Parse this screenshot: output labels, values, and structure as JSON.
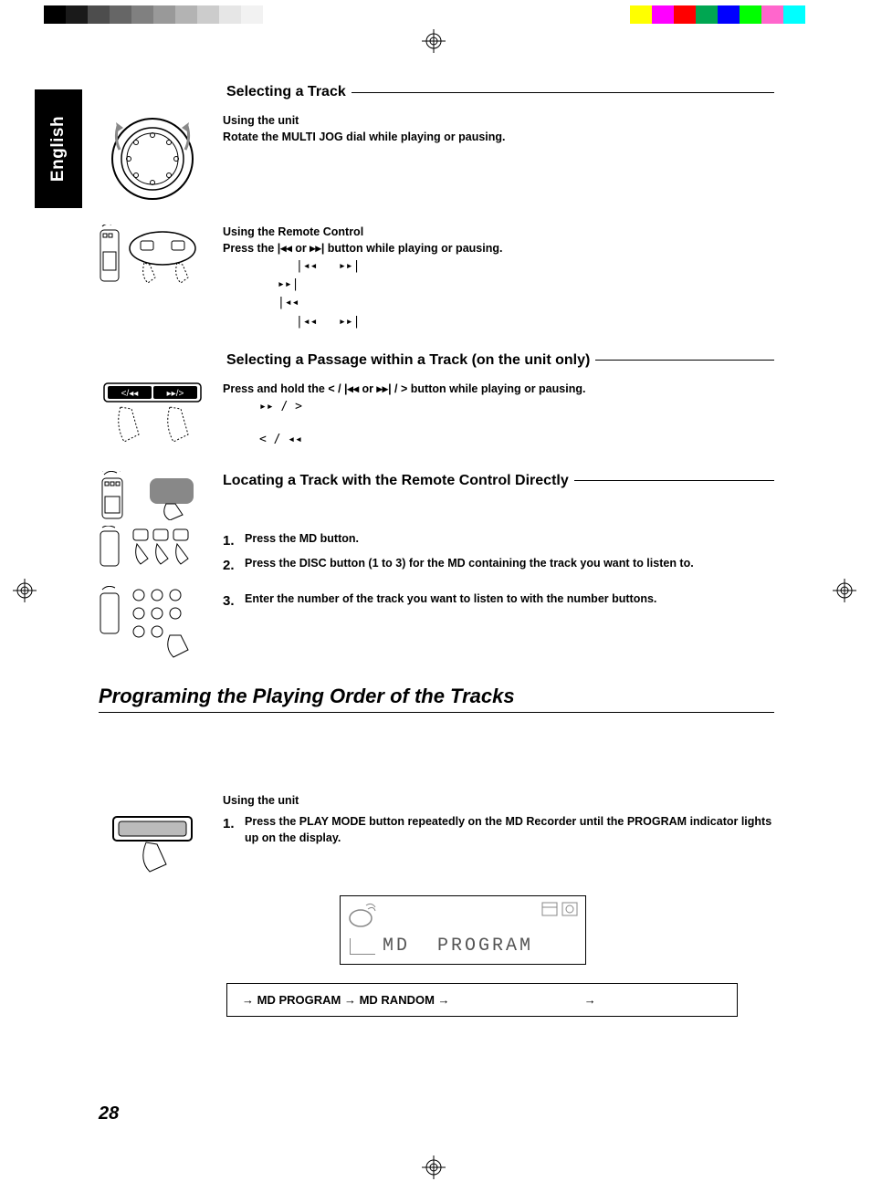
{
  "calibration": {
    "grayscale": [
      "#000000",
      "#1a1a1a",
      "#4d4d4d",
      "#666666",
      "#808080",
      "#999999",
      "#b3b3b3",
      "#cccccc",
      "#e6e6e6",
      "#f2f2f2",
      "#ffffff"
    ],
    "colors": [
      "#ffff00",
      "#ff00ff",
      "#ff0000",
      "#00a651",
      "#0000ff",
      "#00ff00",
      "#ff66cc",
      "#00ffff",
      "#ffffff"
    ]
  },
  "language_tab": "English",
  "page_number": "28",
  "s1": {
    "heading": "Selecting a Track",
    "unit_label": "Using the unit",
    "unit_instruction": "Rotate the MULTI JOG dial while playing or pausing.",
    "remote_label": "Using the Remote Control",
    "remote_instruction_pre": "Press the ",
    "remote_instruction_post": " button while playing or pausing.",
    "sym_prev": "|◂◂",
    "sym_next": "▸▸|",
    "sym_or": " or "
  },
  "s2": {
    "heading": "Selecting a Passage within a Track (on the unit only)",
    "instruction_pre": "Press and hold the ",
    "instruction_post": " button while playing or pausing.",
    "sym_rew": "< / |◂◂",
    "sym_ff": "▸▸| / >",
    "sym_or": " or "
  },
  "s3": {
    "heading": "Locating a Track with the Remote Control Directly",
    "steps": [
      "Press the MD button.",
      "Press the DISC button (1 to 3) for the MD containing the track you want to listen to.",
      "Enter the number of the track you want to listen to with the number buttons."
    ]
  },
  "main_heading": "Programing the Playing Order of the Tracks",
  "s4": {
    "unit_label": "Using the unit",
    "step1": "Press the PLAY MODE button repeatedly on the MD Recorder until the PROGRAM indicator lights up on the display.",
    "display_line1": "MD",
    "display_line2": "PROGRAM",
    "mode_sequence": [
      "MD PROGRAM",
      "MD RANDOM"
    ]
  }
}
